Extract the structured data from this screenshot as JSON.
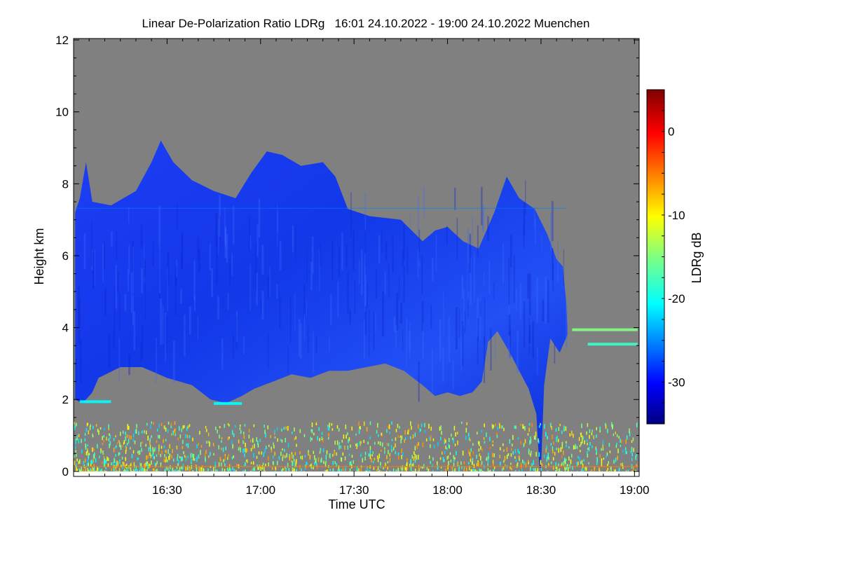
{
  "chart_data": {
    "type": "heatmap",
    "title": "Linear De-Polarization Ratio LDRg   16:01 24.10.2022 - 19:00 24.10.2022 Muenchen",
    "xlabel": "Time UTC",
    "ylabel": "Height km",
    "colorbar_label": "LDRg dB",
    "x_unit": "minutes after 16:00 UTC",
    "xlim": [
      0,
      181.5
    ],
    "ylim": [
      -0.1,
      12.04
    ],
    "x_ticks": [
      {
        "value": 30,
        "label": "16:30"
      },
      {
        "value": 60,
        "label": "17:00"
      },
      {
        "value": 90,
        "label": "17:30"
      },
      {
        "value": 120,
        "label": "18:00"
      },
      {
        "value": 150,
        "label": "18:30"
      },
      {
        "value": 180,
        "label": "19:00"
      }
    ],
    "y_ticks": [
      {
        "value": 0,
        "label": "0"
      },
      {
        "value": 2,
        "label": "2"
      },
      {
        "value": 4,
        "label": "4"
      },
      {
        "value": 6,
        "label": "6"
      },
      {
        "value": 8,
        "label": "8"
      },
      {
        "value": 10,
        "label": "10"
      },
      {
        "value": 12,
        "label": "12"
      }
    ],
    "colorbar": {
      "range": [
        -35,
        5
      ],
      "colormap": "jet",
      "ticks": [
        {
          "value": 0,
          "label": "0"
        },
        {
          "value": -10,
          "label": "-10"
        },
        {
          "value": -20,
          "label": "-20"
        },
        {
          "value": -30,
          "label": "-30"
        }
      ]
    },
    "background_color": "#808080",
    "cloud_ldr_db": -30,
    "cloud_top_km": [
      [
        0.5,
        7.2
      ],
      [
        2,
        7.6
      ],
      [
        4,
        8.6
      ],
      [
        6,
        7.5
      ],
      [
        12,
        7.4
      ],
      [
        20,
        7.8
      ],
      [
        25,
        8.6
      ],
      [
        28,
        9.2
      ],
      [
        32,
        8.6
      ],
      [
        38,
        8.1
      ],
      [
        45,
        7.8
      ],
      [
        52,
        7.6
      ],
      [
        57,
        8.3
      ],
      [
        62,
        8.9
      ],
      [
        67,
        8.8
      ],
      [
        73,
        8.5
      ],
      [
        80,
        8.6
      ],
      [
        84,
        8.2
      ],
      [
        88,
        7.3
      ],
      [
        95,
        7.1
      ],
      [
        105,
        7.0
      ],
      [
        112,
        6.4
      ],
      [
        116,
        6.7
      ],
      [
        120,
        6.8
      ],
      [
        125,
        6.4
      ],
      [
        130,
        6.2
      ],
      [
        135,
        7.2
      ],
      [
        139,
        8.2
      ],
      [
        143,
        7.6
      ],
      [
        148,
        7.3
      ],
      [
        152,
        6.6
      ],
      [
        155,
        5.9
      ],
      [
        157,
        5.7
      ],
      [
        158,
        4.8
      ],
      [
        158.5,
        4.0
      ]
    ],
    "cloud_base_km": [
      [
        158.5,
        3.8
      ],
      [
        156,
        3.3
      ],
      [
        153,
        3.7
      ],
      [
        151,
        2.4
      ],
      [
        150,
        0.1
      ],
      [
        149.5,
        0.1
      ],
      [
        148.5,
        1.6
      ],
      [
        146,
        2.3
      ],
      [
        143,
        2.8
      ],
      [
        140,
        3.3
      ],
      [
        136,
        3.9
      ],
      [
        133,
        3.6
      ],
      [
        131,
        2.5
      ],
      [
        128,
        2.2
      ],
      [
        124,
        2.1
      ],
      [
        120,
        2.2
      ],
      [
        116,
        2.1
      ],
      [
        112,
        2.4
      ],
      [
        106,
        2.8
      ],
      [
        100,
        3.0
      ],
      [
        94,
        2.9
      ],
      [
        88,
        2.8
      ],
      [
        82,
        2.8
      ],
      [
        76,
        2.6
      ],
      [
        70,
        2.7
      ],
      [
        64,
        2.5
      ],
      [
        58,
        2.3
      ],
      [
        54,
        2.1
      ],
      [
        49,
        1.9
      ],
      [
        44,
        2.0
      ],
      [
        38,
        2.4
      ],
      [
        30,
        2.6
      ],
      [
        22,
        2.9
      ],
      [
        15,
        2.9
      ],
      [
        8,
        2.6
      ],
      [
        6,
        2.2
      ],
      [
        3,
        1.9
      ],
      [
        0.5,
        2.0
      ]
    ],
    "features": [
      {
        "name": "thin layer",
        "height_km": 7.3,
        "from_min": 0.5,
        "to_min": 158,
        "ldr_db": -25
      },
      {
        "name": "cyan streak",
        "height_km": 1.95,
        "from_min": 2,
        "to_min": 12,
        "ldr_db": -20
      },
      {
        "name": "cyan streak",
        "height_km": 1.9,
        "from_min": 45,
        "to_min": 54,
        "ldr_db": -20
      },
      {
        "name": "layer",
        "height_km": 3.95,
        "from_min": 160,
        "to_min": 181,
        "ldr_db": -15
      },
      {
        "name": "layer",
        "height_km": 3.55,
        "from_min": 165,
        "to_min": 181,
        "ldr_db": -18
      }
    ],
    "surface_noise": {
      "height_range_km": [
        0,
        1.4
      ],
      "ldr_range_db": [
        -22,
        -5
      ]
    }
  }
}
